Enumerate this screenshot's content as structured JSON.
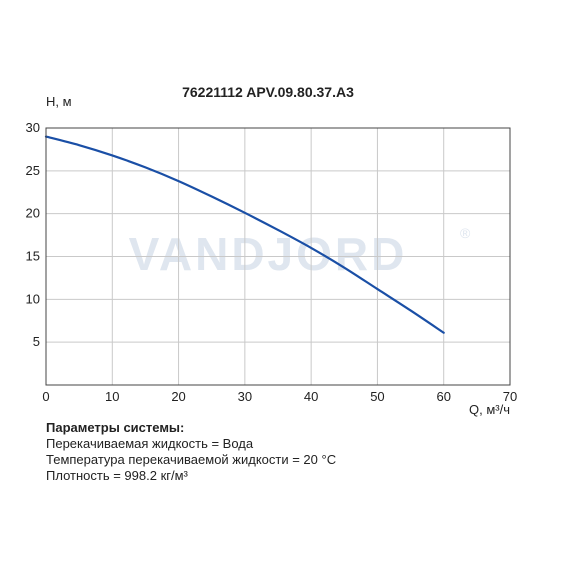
{
  "chart_data": {
    "type": "line",
    "title": "76221112 APV.09.80.37.A3",
    "xlabel": "Q, м³/ч",
    "ylabel": "H, м",
    "xlim": [
      0,
      70
    ],
    "ylim": [
      0,
      30
    ],
    "xticks": [
      0,
      10,
      20,
      30,
      40,
      50,
      60,
      70
    ],
    "yticks": [
      5,
      10,
      15,
      20,
      25,
      30
    ],
    "grid": true,
    "series": [
      {
        "color": "#1a4fa6",
        "x": [
          0,
          5,
          10,
          15,
          20,
          25,
          30,
          35,
          40,
          45,
          50,
          55,
          60
        ],
        "y": [
          29.0,
          28.0,
          26.8,
          25.4,
          23.8,
          22.0,
          20.1,
          18.1,
          16.0,
          13.7,
          11.2,
          8.7,
          6.1
        ]
      }
    ]
  },
  "watermark": {
    "text": "VANDJORD",
    "mark": "®"
  },
  "params": {
    "heading": "Параметры системы:",
    "lines": [
      "Перекачиваемая жидкость = Вода",
      "Температура перекачиваемой жидкости = 20 °C",
      "Плотность = 998.2 кг/м³"
    ]
  }
}
